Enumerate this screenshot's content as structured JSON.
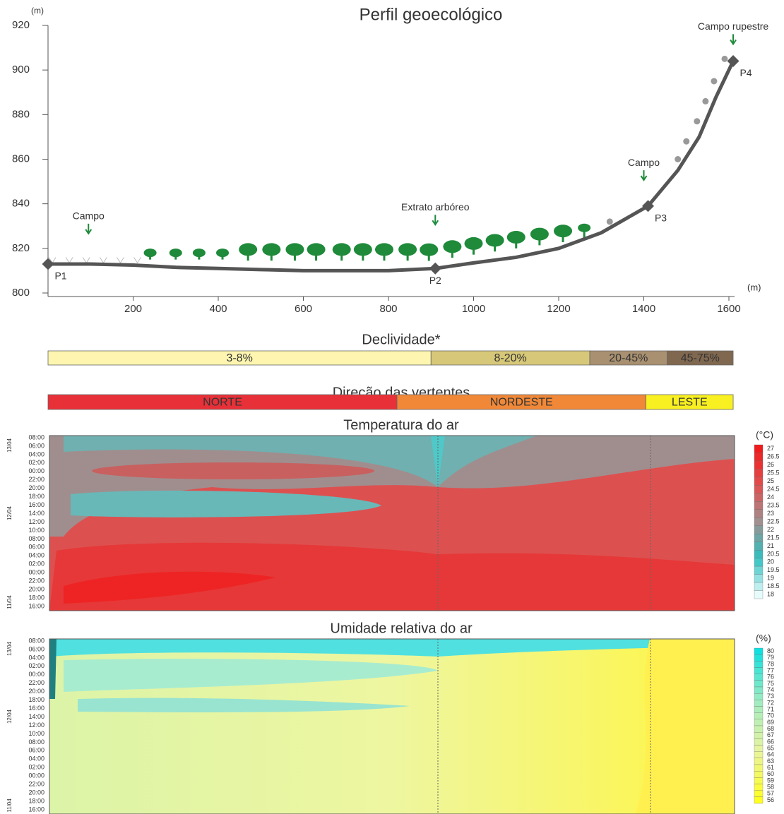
{
  "chart_data": [
    {
      "type": "profile",
      "title": "Perfil geoecológico",
      "y_unit": "(m)",
      "x_unit": "(m)",
      "x": [
        0,
        100,
        200,
        300,
        400,
        500,
        600,
        700,
        800,
        910,
        1000,
        1100,
        1200,
        1300,
        1410,
        1480,
        1530,
        1570,
        1610
      ],
      "values": [
        813,
        813,
        812.5,
        811.5,
        811,
        810.5,
        810,
        810,
        810,
        811,
        813.5,
        816,
        820,
        827,
        839,
        855,
        870,
        888,
        904
      ],
      "color": "#555555",
      "points": [
        {
          "label": "P1",
          "x": 0,
          "y": 813
        },
        {
          "label": "P2",
          "x": 910,
          "y": 811
        },
        {
          "label": "P3",
          "x": 1410,
          "y": 839
        },
        {
          "label": "P4",
          "x": 1610,
          "y": 904
        }
      ],
      "annotations": [
        {
          "text": "Campo",
          "x": 95,
          "y": 826
        },
        {
          "text": "Extrato arbóreo",
          "x": 910,
          "y": 830
        },
        {
          "text": "Campo",
          "x": 1400,
          "y": 850
        },
        {
          "text": "Campo rupestre",
          "x": 1610,
          "y": 911
        }
      ],
      "xlim": [
        0,
        1600
      ],
      "ylim": [
        800,
        920
      ],
      "xticks": [
        200,
        400,
        600,
        800,
        1000,
        1200,
        1400,
        1600
      ],
      "yticks": [
        800,
        820,
        840,
        860,
        880,
        900,
        920
      ]
    },
    {
      "type": "segments",
      "title": "Declividade*",
      "segments": [
        {
          "label": "3-8%",
          "start": 0,
          "end": 900,
          "color": "#fdf5b0"
        },
        {
          "label": "8-20%",
          "start": 900,
          "end": 1273,
          "color": "#d6c878"
        },
        {
          "label": "20-45%",
          "start": 1273,
          "end": 1455,
          "color": "#a89070"
        },
        {
          "label": "45-75%",
          "start": 1455,
          "end": 1610,
          "color": "#806850"
        }
      ]
    },
    {
      "type": "segments",
      "title": "Direção das vertentes",
      "segments": [
        {
          "label": "NORTE",
          "start": 0,
          "end": 820,
          "color": "#e83038"
        },
        {
          "label": "NORDESTE",
          "start": 820,
          "end": 1405,
          "color": "#f08838"
        },
        {
          "label": "LESTE",
          "start": 1405,
          "end": 1610,
          "color": "#f8f020"
        }
      ]
    },
    {
      "type": "contour",
      "title": "Temperatura do ar",
      "unit": "(°C)",
      "time_labels": [
        "16:00",
        "18:00",
        "20:00",
        "22:00",
        "00:00",
        "02:00",
        "04:00",
        "06:00",
        "08:00",
        "10:00",
        "12:00",
        "14:00",
        "16:00",
        "18:00",
        "20:00",
        "22:00",
        "00:00",
        "02:00",
        "04:00",
        "06:00",
        "08:00"
      ],
      "date_labels": [
        "11/04",
        "12/04",
        "13/04"
      ],
      "levels": [
        27,
        26.5,
        26,
        25.5,
        25,
        24.5,
        24,
        23.5,
        23,
        22.5,
        22,
        21.5,
        21,
        20.5,
        20,
        19.5,
        19,
        18.5,
        18
      ],
      "colormap": [
        "#f01c1c",
        "#e05050",
        "#a09090",
        "#30c0c0",
        "#e6fbfb"
      ]
    },
    {
      "type": "contour",
      "title": "Umidade relativa do ar",
      "unit": "(%)",
      "time_labels": [
        "16:00",
        "18:00",
        "20:00",
        "22:00",
        "00:00",
        "02:00",
        "04:00",
        "06:00",
        "08:00",
        "10:00",
        "12:00",
        "14:00",
        "16:00",
        "18:00",
        "20:00",
        "22:00",
        "00:00",
        "02:00",
        "04:00",
        "06:00",
        "08:00"
      ],
      "date_labels": [
        "11/04",
        "12/04",
        "13/04"
      ],
      "levels": [
        80,
        79,
        78,
        77,
        76,
        75,
        74,
        73,
        72,
        71,
        70,
        69,
        68,
        67,
        66,
        65,
        64,
        63,
        61,
        60,
        59,
        58,
        57,
        56
      ],
      "colormap": [
        "#10e0e0",
        "#a0ecc0",
        "#e8f4a0",
        "#ffff20"
      ]
    }
  ]
}
